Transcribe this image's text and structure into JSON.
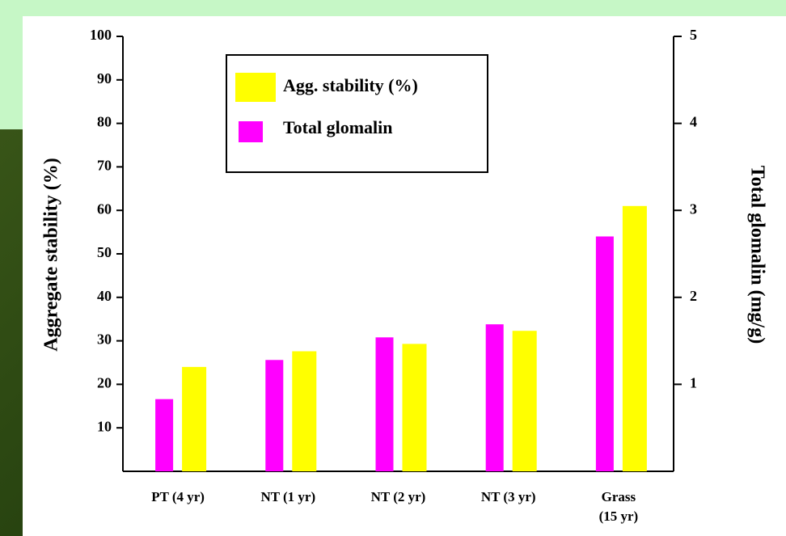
{
  "chart_data": {
    "type": "bar",
    "categories": [
      "PT (4 yr)",
      "NT (1 yr)",
      "NT (2 yr)",
      "NT (3 yr)",
      "Grass\n(15 yr)"
    ],
    "series": [
      {
        "name": "Total glomalin",
        "color": "#ff00ff",
        "axis": "y2",
        "values": [
          0.83,
          1.28,
          1.54,
          1.69,
          2.7
        ]
      },
      {
        "name": "Agg. stability (%)",
        "color": "#ffff00",
        "values": [
          24,
          27.6,
          29.3,
          32.3,
          61
        ]
      }
    ],
    "ylabel": "Aggregate stability (%)",
    "y2label": "Total glomalin (mg/g)",
    "ylim": [
      0,
      100
    ],
    "yticks": [
      10,
      20,
      30,
      40,
      50,
      60,
      70,
      80,
      90,
      100
    ],
    "y2lim": [
      0,
      5
    ],
    "y2ticks": [
      1,
      2,
      3,
      4,
      5
    ],
    "legend": "top-left"
  }
}
